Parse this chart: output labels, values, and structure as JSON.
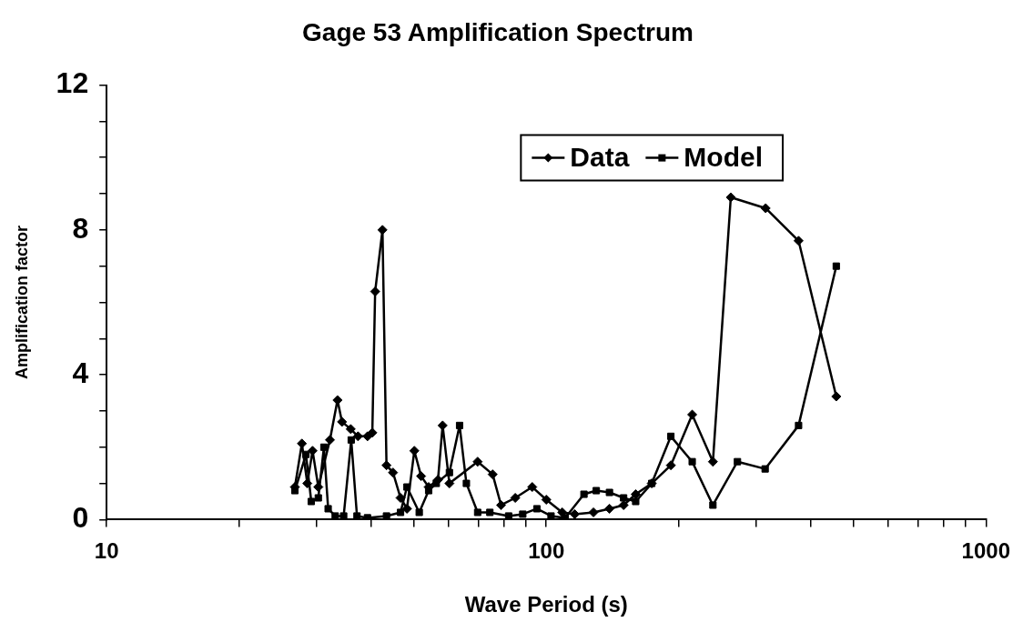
{
  "chart_data": {
    "type": "line",
    "title": "Gage 53 Amplification Spectrum",
    "xlabel": "Wave Period (s)",
    "ylabel": "Amplification factor",
    "log": "x",
    "xlim": [
      10,
      1000
    ],
    "ylim": [
      0,
      12
    ],
    "xticks": [
      10,
      {
        "value": 20,
        "label": null
      },
      {
        "value": 30,
        "label": null
      },
      {
        "value": 40,
        "label": null
      },
      {
        "value": 50,
        "label": null
      },
      {
        "value": 60,
        "label": null
      },
      {
        "value": 70,
        "label": null
      },
      {
        "value": 80,
        "label": null
      },
      {
        "value": 90,
        "label": null
      },
      100,
      {
        "value": 200,
        "label": null
      },
      {
        "value": 300,
        "label": null
      },
      {
        "value": 400,
        "label": null
      },
      {
        "value": 500,
        "label": null
      },
      {
        "value": 600,
        "label": null
      },
      {
        "value": 700,
        "label": null
      },
      {
        "value": 800,
        "label": null
      },
      {
        "value": 900,
        "label": null
      },
      1000
    ],
    "yticks": [
      0,
      {
        "value": 1,
        "label": null
      },
      {
        "value": 2,
        "label": null
      },
      {
        "value": 3,
        "label": null
      },
      4,
      {
        "value": 5,
        "label": null
      },
      {
        "value": 6,
        "label": null
      },
      {
        "value": 7,
        "label": null
      },
      8,
      {
        "value": 9,
        "label": null
      },
      {
        "value": 10,
        "label": null
      },
      {
        "value": 11,
        "label": null
      },
      12
    ],
    "grid": false,
    "legend": "top",
    "line_style": "solid",
    "series": [
      {
        "name": "Data",
        "color": "#000000",
        "marker": "diamond",
        "x": [
          26.8,
          27.8,
          28.6,
          29.4,
          30.3,
          32.2,
          33.5,
          34.3,
          35.9,
          37.3,
          39.2,
          40.2,
          40.8,
          42.4,
          43.3,
          44.8,
          46.6,
          48.2,
          50.1,
          51.9,
          54.0,
          56.7,
          58.1,
          60.2,
          69.8,
          75.5,
          78.9,
          85.0,
          92.9,
          100,
          108.7,
          116,
          128,
          139.2,
          149.9,
          159.7,
          173.7,
          192,
          214.7,
          239.3,
          262.8,
          315.4,
          374.8,
          456.6
        ],
        "values": [
          0.9,
          2.1,
          1.0,
          1.9,
          0.9,
          2.2,
          3.3,
          2.7,
          2.5,
          2.3,
          2.3,
          2.4,
          6.3,
          8.0,
          1.5,
          1.3,
          0.6,
          0.3,
          1.9,
          1.2,
          0.9,
          1.1,
          2.6,
          1.0,
          1.6,
          1.25,
          0.4,
          0.6,
          0.9,
          0.55,
          0.2,
          0.15,
          0.2,
          0.3,
          0.4,
          0.7,
          1.0,
          1.5,
          2.9,
          1.6,
          8.9,
          8.6,
          7.7,
          3.4
        ]
      },
      {
        "name": "Model",
        "color": "#000000",
        "marker": "square",
        "x": [
          26.8,
          28.4,
          29.2,
          30.3,
          31.2,
          31.9,
          33.1,
          34.6,
          36.0,
          37.1,
          39.2,
          43.3,
          46.6,
          48.2,
          51.4,
          54.0,
          56.2,
          60.2,
          63.5,
          65.8,
          69.8,
          74.4,
          82.1,
          88.4,
          95.2,
          102.5,
          110.4,
          121.8,
          129.9,
          139.2,
          149.9,
          159.7,
          173.7,
          192,
          214.7,
          239.3,
          272.1,
          314.6,
          374.8,
          456.6
        ],
        "values": [
          0.8,
          1.8,
          0.5,
          0.6,
          2.0,
          0.3,
          0.1,
          0.1,
          2.2,
          0.1,
          0.05,
          0.1,
          0.2,
          0.9,
          0.2,
          0.8,
          1.0,
          1.3,
          2.6,
          1.0,
          0.2,
          0.2,
          0.1,
          0.15,
          0.3,
          0.1,
          0.05,
          0.7,
          0.8,
          0.75,
          0.6,
          0.5,
          1.0,
          2.3,
          1.6,
          0.4,
          1.6,
          1.4,
          2.6,
          7.0
        ]
      }
    ]
  }
}
